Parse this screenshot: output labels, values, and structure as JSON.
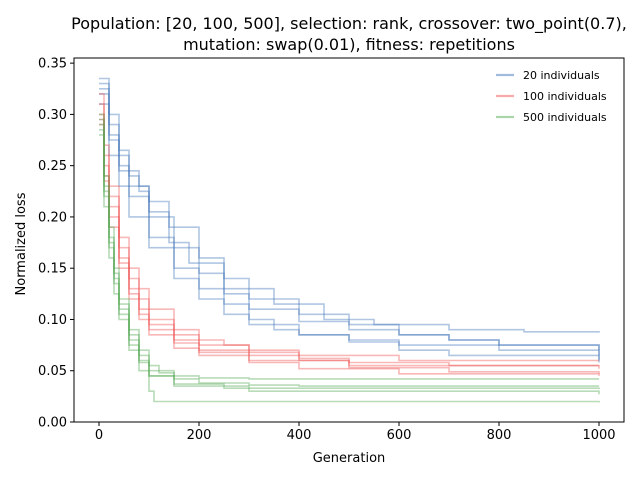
{
  "chart_data": {
    "type": "line",
    "title": "Population: [20, 100, 500], selection: rank, crossover: two_point(0.7),",
    "subtitle": "mutation: swap(0.01), fitness: repetitions",
    "xlabel": "Generation",
    "ylabel": "Normalized loss",
    "xlim": [
      -50,
      1050
    ],
    "ylim": [
      0.0,
      0.355
    ],
    "xticks": [
      0,
      200,
      400,
      600,
      800,
      1000
    ],
    "yticks": [
      0.0,
      0.05,
      0.1,
      0.15,
      0.2,
      0.25,
      0.3,
      0.35
    ],
    "xtick_labels": [
      "0",
      "200",
      "400",
      "600",
      "800",
      "1000"
    ],
    "ytick_labels": [
      "0.00",
      "0.05",
      "0.10",
      "0.15",
      "0.20",
      "0.25",
      "0.30",
      "0.35"
    ],
    "grid": false,
    "legend_position": "top-right",
    "legend": [
      "20 individuals",
      "100 individuals",
      "500 individuals"
    ],
    "groups": [
      {
        "name": "20 individuals",
        "color": "#4477bb",
        "runs": [
          {
            "x": [
              0,
              20,
              40,
              60,
              80,
              100,
              140,
              180,
              250,
              350,
              450,
              550,
              700,
              850,
              1000
            ],
            "y": [
              0.335,
              0.3,
              0.265,
              0.245,
              0.225,
              0.205,
              0.175,
              0.155,
              0.13,
              0.115,
              0.1,
              0.095,
              0.09,
              0.088,
              0.087
            ]
          },
          {
            "x": [
              0,
              20,
              40,
              60,
              80,
              100,
              140,
              200,
              250,
              300,
              400,
              500,
              600,
              700,
              800,
              1000
            ],
            "y": [
              0.33,
              0.29,
              0.26,
              0.24,
              0.23,
              0.215,
              0.19,
              0.16,
              0.14,
              0.12,
              0.105,
              0.095,
              0.085,
              0.08,
              0.075,
              0.06
            ]
          },
          {
            "x": [
              0,
              20,
              40,
              60,
              100,
              150,
              200,
              250,
              300,
              400,
              500,
              600,
              700,
              800,
              1000
            ],
            "y": [
              0.325,
              0.28,
              0.25,
              0.23,
              0.2,
              0.17,
              0.145,
              0.125,
              0.11,
              0.098,
              0.09,
              0.085,
              0.08,
              0.075,
              0.07
            ]
          },
          {
            "x": [
              0,
              20,
              40,
              60,
              100,
              150,
              200,
              250,
              300,
              350,
              400,
              500,
              600,
              800,
              1000
            ],
            "y": [
              0.32,
              0.275,
              0.245,
              0.22,
              0.18,
              0.15,
              0.13,
              0.115,
              0.1,
              0.09,
              0.085,
              0.08,
              0.075,
              0.07,
              0.065
            ]
          },
          {
            "x": [
              0,
              20,
              40,
              60,
              100,
              150,
              200,
              250,
              300,
              400,
              500,
              600,
              700,
              1000
            ],
            "y": [
              0.31,
              0.26,
              0.23,
              0.2,
              0.17,
              0.14,
              0.12,
              0.105,
              0.095,
              0.085,
              0.078,
              0.07,
              0.065,
              0.058
            ]
          }
        ]
      },
      {
        "name": "100 individuals",
        "color": "#ee5555",
        "runs": [
          {
            "x": [
              0,
              10,
              20,
              40,
              60,
              80,
              100,
              150,
              200,
              250,
              300,
              400,
              600,
              1000
            ],
            "y": [
              0.32,
              0.27,
              0.23,
              0.18,
              0.15,
              0.13,
              0.11,
              0.09,
              0.08,
              0.075,
              0.07,
              0.065,
              0.06,
              0.06
            ]
          },
          {
            "x": [
              0,
              10,
              20,
              40,
              60,
              80,
              100,
              150,
              200,
              300,
              400,
              500,
              700,
              1000
            ],
            "y": [
              0.31,
              0.26,
              0.22,
              0.17,
              0.14,
              0.12,
              0.1,
              0.085,
              0.075,
              0.068,
              0.062,
              0.058,
              0.055,
              0.055
            ]
          },
          {
            "x": [
              0,
              10,
              20,
              40,
              60,
              80,
              100,
              150,
              200,
              300,
              400,
              500,
              1000
            ],
            "y": [
              0.3,
              0.25,
              0.21,
              0.16,
              0.13,
              0.11,
              0.095,
              0.08,
              0.07,
              0.065,
              0.06,
              0.055,
              0.052
            ]
          },
          {
            "x": [
              0,
              10,
              20,
              40,
              60,
              80,
              100,
              150,
              200,
              300,
              500,
              700,
              1000
            ],
            "y": [
              0.295,
              0.24,
              0.2,
              0.155,
              0.125,
              0.105,
              0.09,
              0.077,
              0.068,
              0.06,
              0.053,
              0.049,
              0.047
            ]
          },
          {
            "x": [
              0,
              10,
              20,
              40,
              60,
              80,
              100,
              150,
              200,
              300,
              400,
              600,
              1000
            ],
            "y": [
              0.29,
              0.235,
              0.19,
              0.15,
              0.12,
              0.1,
              0.085,
              0.072,
              0.065,
              0.058,
              0.052,
              0.047,
              0.045
            ]
          }
        ]
      },
      {
        "name": "500 individuals",
        "color": "#55aa55",
        "runs": [
          {
            "x": [
              0,
              10,
              20,
              30,
              40,
              60,
              80,
              100,
              120,
              150,
              200,
              300,
              1000
            ],
            "y": [
              0.3,
              0.24,
              0.19,
              0.15,
              0.12,
              0.09,
              0.07,
              0.055,
              0.048,
              0.045,
              0.043,
              0.042,
              0.042
            ]
          },
          {
            "x": [
              0,
              10,
              20,
              30,
              40,
              60,
              80,
              100,
              150,
              200,
              300,
              400,
              1000
            ],
            "y": [
              0.295,
              0.23,
              0.18,
              0.145,
              0.115,
              0.085,
              0.065,
              0.05,
              0.042,
              0.038,
              0.036,
              0.035,
              0.035
            ]
          },
          {
            "x": [
              0,
              10,
              20,
              30,
              40,
              60,
              80,
              100,
              150,
              250,
              1000
            ],
            "y": [
              0.29,
              0.225,
              0.175,
              0.14,
              0.11,
              0.08,
              0.06,
              0.045,
              0.037,
              0.033,
              0.032
            ]
          },
          {
            "x": [
              0,
              10,
              20,
              30,
              40,
              60,
              80,
              100,
              150,
              300,
              1000
            ],
            "y": [
              0.285,
              0.22,
              0.17,
              0.135,
              0.105,
              0.075,
              0.058,
              0.045,
              0.035,
              0.03,
              0.027
            ]
          },
          {
            "x": [
              0,
              10,
              20,
              30,
              40,
              60,
              80,
              100,
              110,
              1000
            ],
            "y": [
              0.28,
              0.21,
              0.16,
              0.125,
              0.1,
              0.07,
              0.05,
              0.03,
              0.02,
              0.019
            ]
          }
        ]
      }
    ]
  }
}
